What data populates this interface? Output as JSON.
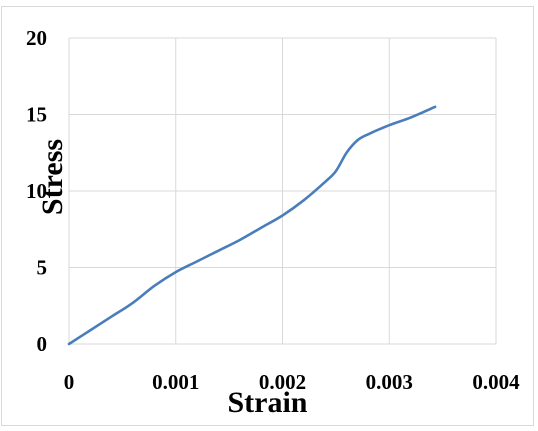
{
  "chart_data": {
    "type": "line",
    "title": "",
    "xlabel": "Strain",
    "ylabel": "Stress",
    "xlim": [
      0,
      0.004
    ],
    "ylim": [
      0,
      20
    ],
    "x_ticks": [
      0,
      0.001,
      0.002,
      0.003,
      0.004
    ],
    "x_tick_labels": [
      "0",
      "0.001",
      "0.002",
      "0.003",
      "0.004"
    ],
    "y_ticks": [
      0,
      5,
      10,
      15,
      20
    ],
    "y_tick_labels": [
      "0",
      "5",
      "10",
      "15",
      "20"
    ],
    "grid": true,
    "legend": "none",
    "series": [
      {
        "color": "#4a7ebb",
        "x": [
          0,
          0.0002,
          0.0004,
          0.0006,
          0.0008,
          0.001,
          0.0012,
          0.0014,
          0.0016,
          0.0018,
          0.002,
          0.0022,
          0.0024,
          0.0025,
          0.0026,
          0.0027,
          0.0028,
          0.003,
          0.0032,
          0.00343
        ],
        "y": [
          0,
          0.9,
          1.8,
          2.7,
          3.8,
          4.7,
          5.4,
          6.1,
          6.8,
          7.6,
          8.4,
          9.4,
          10.6,
          11.3,
          12.5,
          13.3,
          13.7,
          14.3,
          14.8,
          15.5
        ]
      }
    ]
  }
}
